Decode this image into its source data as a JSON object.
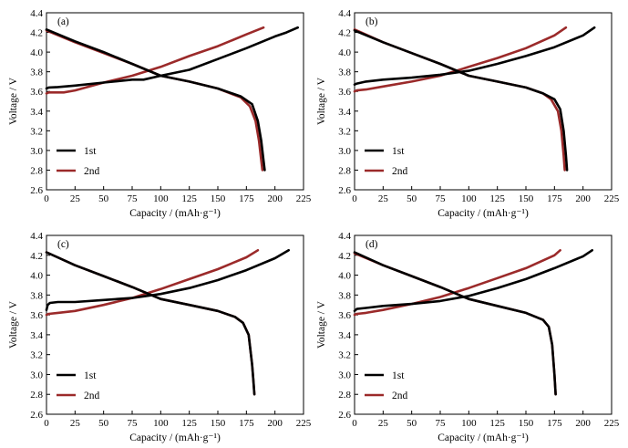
{
  "chart_data": [
    {
      "type": "line",
      "panel_label": "(a)",
      "xlabel": "Capacity / (mAh·g⁻¹)",
      "ylabel": "Voltage / V",
      "xlim": [
        0,
        225
      ],
      "ylim": [
        2.6,
        4.4
      ],
      "xticks": [
        "0",
        "25",
        "50",
        "75",
        "100",
        "125",
        "150",
        "175",
        "200",
        "225"
      ],
      "yticks": [
        "2.6",
        "2.8",
        "3.0",
        "3.2",
        "3.4",
        "3.6",
        "3.8",
        "4.0",
        "4.2",
        "4.4"
      ],
      "legend": "bottom-left",
      "series": [
        {
          "name": "1st",
          "color": "#000000",
          "segments": [
            {
              "x": [
                0,
                2,
                10,
                25,
                50,
                75,
                85,
                100,
                125,
                150,
                175,
                200,
                210,
                220
              ],
              "y": [
                3.63,
                3.64,
                3.645,
                3.66,
                3.69,
                3.72,
                3.72,
                3.76,
                3.82,
                3.93,
                4.04,
                4.16,
                4.2,
                4.25
              ]
            },
            {
              "x": [
                0,
                25,
                50,
                75,
                100,
                125,
                150,
                170,
                180,
                185,
                188,
                190,
                191
              ],
              "y": [
                4.23,
                4.11,
                4.0,
                3.88,
                3.76,
                3.7,
                3.63,
                3.55,
                3.47,
                3.3,
                3.1,
                2.9,
                2.8
              ]
            }
          ]
        },
        {
          "name": "2nd",
          "color": "#9b2a2a",
          "segments": [
            {
              "x": [
                0,
                2,
                15,
                25,
                50,
                75,
                100,
                125,
                150,
                175,
                190
              ],
              "y": [
                3.58,
                3.59,
                3.59,
                3.61,
                3.69,
                3.76,
                3.85,
                3.96,
                4.06,
                4.18,
                4.25
              ]
            },
            {
              "x": [
                0,
                25,
                50,
                75,
                100,
                125,
                150,
                170,
                178,
                183,
                186,
                188,
                189
              ],
              "y": [
                4.22,
                4.1,
                3.99,
                3.88,
                3.76,
                3.7,
                3.63,
                3.54,
                3.45,
                3.3,
                3.1,
                2.9,
                2.8
              ]
            }
          ]
        }
      ]
    },
    {
      "type": "line",
      "panel_label": "(b)",
      "xlabel": "Capacity / (mAh·g⁻¹)",
      "ylabel": "Voltage / V",
      "xlim": [
        0,
        225
      ],
      "ylim": [
        2.6,
        4.4
      ],
      "xticks": [
        "0",
        "25",
        "50",
        "75",
        "100",
        "125",
        "150",
        "175",
        "200",
        "225"
      ],
      "yticks": [
        "2.6",
        "2.8",
        "3.0",
        "3.2",
        "3.4",
        "3.6",
        "3.8",
        "4.0",
        "4.2",
        "4.4"
      ],
      "legend": "bottom-left",
      "series": [
        {
          "name": "1st",
          "color": "#000000",
          "segments": [
            {
              "x": [
                0,
                2,
                10,
                25,
                50,
                75,
                100,
                125,
                150,
                175,
                200,
                210
              ],
              "y": [
                3.67,
                3.68,
                3.7,
                3.72,
                3.74,
                3.77,
                3.81,
                3.88,
                3.96,
                4.05,
                4.17,
                4.25
              ]
            },
            {
              "x": [
                0,
                25,
                50,
                75,
                100,
                125,
                150,
                165,
                175,
                180,
                183,
                185,
                186
              ],
              "y": [
                4.22,
                4.1,
                3.99,
                3.88,
                3.76,
                3.7,
                3.64,
                3.58,
                3.52,
                3.42,
                3.2,
                2.95,
                2.8
              ]
            }
          ]
        },
        {
          "name": "2nd",
          "color": "#9b2a2a",
          "segments": [
            {
              "x": [
                0,
                2,
                10,
                25,
                50,
                75,
                100,
                125,
                150,
                175,
                185
              ],
              "y": [
                3.6,
                3.61,
                3.62,
                3.65,
                3.7,
                3.76,
                3.85,
                3.94,
                4.04,
                4.17,
                4.25
              ]
            },
            {
              "x": [
                0,
                25,
                50,
                75,
                100,
                125,
                150,
                165,
                172,
                178,
                181,
                183,
                184
              ],
              "y": [
                4.23,
                4.1,
                3.99,
                3.88,
                3.76,
                3.7,
                3.64,
                3.58,
                3.52,
                3.4,
                3.2,
                2.95,
                2.8
              ]
            }
          ]
        }
      ]
    },
    {
      "type": "line",
      "panel_label": "(c)",
      "xlabel": "Capacity / (mAh·g⁻¹)",
      "ylabel": "Voltage / V",
      "xlim": [
        0,
        225
      ],
      "ylim": [
        2.6,
        4.4
      ],
      "xticks": [
        "0",
        "25",
        "50",
        "75",
        "100",
        "125",
        "150",
        "175",
        "200",
        "225"
      ],
      "yticks": [
        "2.6",
        "2.8",
        "3.0",
        "3.2",
        "3.4",
        "3.6",
        "3.8",
        "4.0",
        "4.2",
        "4.4"
      ],
      "legend": "bottom-left",
      "series": [
        {
          "name": "1st",
          "color": "#000000",
          "segments": [
            {
              "x": [
                0,
                1,
                3,
                10,
                25,
                50,
                75,
                100,
                125,
                150,
                175,
                200,
                212
              ],
              "y": [
                3.65,
                3.7,
                3.72,
                3.73,
                3.73,
                3.75,
                3.77,
                3.81,
                3.87,
                3.95,
                4.05,
                4.17,
                4.25
              ]
            },
            {
              "x": [
                0,
                25,
                50,
                75,
                100,
                125,
                150,
                165,
                172,
                177,
                180,
                181,
                182
              ],
              "y": [
                4.23,
                4.1,
                3.99,
                3.88,
                3.76,
                3.7,
                3.64,
                3.58,
                3.52,
                3.4,
                3.1,
                2.95,
                2.8
              ]
            }
          ]
        },
        {
          "name": "2nd",
          "color": "#9b2a2a",
          "segments": [
            {
              "x": [
                0,
                2,
                10,
                25,
                50,
                75,
                100,
                125,
                150,
                175,
                185
              ],
              "y": [
                3.6,
                3.61,
                3.62,
                3.64,
                3.7,
                3.77,
                3.86,
                3.96,
                4.06,
                4.18,
                4.25
              ]
            },
            {
              "x": [
                0,
                25,
                50,
                75,
                100,
                125,
                150,
                165,
                172,
                177,
                180,
                181,
                182
              ],
              "y": [
                4.23,
                4.1,
                3.99,
                3.88,
                3.76,
                3.7,
                3.64,
                3.58,
                3.52,
                3.4,
                3.1,
                2.95,
                2.8
              ]
            }
          ]
        }
      ]
    },
    {
      "type": "line",
      "panel_label": "(d)",
      "xlabel": "Capacity / (mAh·g⁻¹)",
      "ylabel": "Voltage / V",
      "xlim": [
        0,
        225
      ],
      "ylim": [
        2.6,
        4.4
      ],
      "xticks": [
        "0",
        "25",
        "50",
        "75",
        "100",
        "125",
        "150",
        "175",
        "200",
        "225"
      ],
      "yticks": [
        "2.6",
        "2.8",
        "3.0",
        "3.2",
        "3.4",
        "3.6",
        "3.8",
        "4.0",
        "4.2",
        "4.4"
      ],
      "legend": "bottom-left",
      "series": [
        {
          "name": "1st",
          "color": "#000000",
          "segments": [
            {
              "x": [
                0,
                2,
                10,
                25,
                50,
                75,
                100,
                125,
                150,
                175,
                200,
                208
              ],
              "y": [
                3.64,
                3.66,
                3.67,
                3.69,
                3.71,
                3.74,
                3.79,
                3.87,
                3.96,
                4.07,
                4.19,
                4.25
              ]
            },
            {
              "x": [
                0,
                25,
                50,
                75,
                100,
                125,
                150,
                165,
                170,
                173,
                175,
                176
              ],
              "y": [
                4.23,
                4.1,
                3.99,
                3.88,
                3.76,
                3.69,
                3.62,
                3.55,
                3.48,
                3.3,
                3.0,
                2.8
              ]
            }
          ]
        },
        {
          "name": "2nd",
          "color": "#9b2a2a",
          "segments": [
            {
              "x": [
                0,
                2,
                10,
                25,
                50,
                75,
                100,
                125,
                150,
                175,
                180
              ],
              "y": [
                3.6,
                3.61,
                3.62,
                3.65,
                3.71,
                3.78,
                3.87,
                3.97,
                4.07,
                4.2,
                4.25
              ]
            },
            {
              "x": [
                0,
                25,
                50,
                75,
                100,
                125,
                150,
                165,
                170,
                173,
                175,
                176
              ],
              "y": [
                4.22,
                4.1,
                3.99,
                3.88,
                3.76,
                3.69,
                3.62,
                3.55,
                3.48,
                3.3,
                3.0,
                2.8
              ]
            }
          ]
        }
      ]
    }
  ]
}
